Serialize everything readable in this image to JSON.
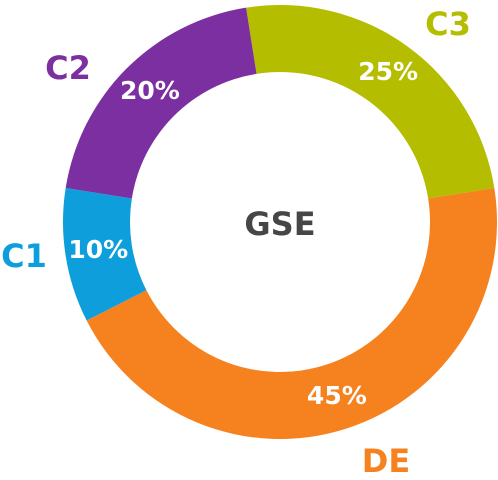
{
  "chart_data": {
    "type": "donut",
    "center_text": "GSE",
    "categories": [
      "C3",
      "DE",
      "C1",
      "C2"
    ],
    "values": [
      25,
      45,
      10,
      20
    ],
    "value_labels": [
      "25%",
      "45%",
      "10%",
      "20%"
    ],
    "colors": [
      "#b5bd00",
      "#f5821f",
      "#0e9edb",
      "#7b2fa1"
    ]
  }
}
